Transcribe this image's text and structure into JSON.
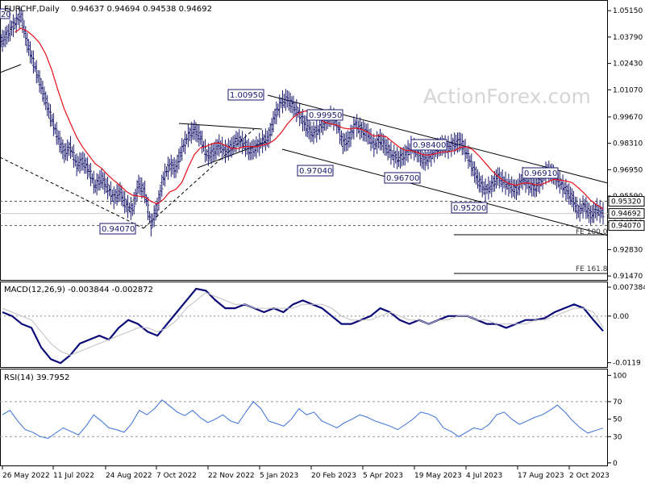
{
  "header": {
    "symbol": "EURCHF,Daily",
    "ohlc": "0.94637 0.94694 0.94538 0.94692"
  },
  "watermark": "ActionForex.com",
  "colors": {
    "price": "#1a1a6e",
    "ma": "#e8101a",
    "macd": "#0a0a78",
    "signal": "#c0c0c0",
    "rsi": "#3a6fd8",
    "line": "#000000",
    "level": "#555555",
    "label_border": "#1a1a6e",
    "watermark": "#d5d5d5"
  },
  "chart_data": [
    {
      "type": "candlestick",
      "panel": "price",
      "title": "EURCHF,Daily",
      "ylim": [
        0.9135,
        1.0545
      ],
      "y_ticks": [
        "1.05150",
        "1.03790",
        "1.02430",
        "1.01070",
        "0.99670",
        "0.98310",
        "0.96950",
        "0.95590",
        "0.94230",
        "0.92830",
        "0.91470"
      ],
      "current_price": "0.94692",
      "level_labels": [
        "0.95320",
        "0.94070"
      ],
      "x_tick_labels": [
        "26 May 2022",
        "11 Jul 2022",
        "24 Aug 2022",
        "7 Oct 2022",
        "22 Nov 2022",
        "5 Jan 2023",
        "20 Feb 2023",
        "5 Apr 2023",
        "19 May 2023",
        "4 Jul 2023",
        "17 Aug 2023",
        "2 Oct 2023"
      ],
      "closes": [
        1.036,
        1.04,
        1.045,
        1.049,
        1.035,
        1.025,
        1.015,
        1.005,
        0.995,
        0.986,
        0.978,
        0.981,
        0.972,
        0.974,
        0.969,
        0.961,
        0.965,
        0.96,
        0.955,
        0.958,
        0.951,
        0.949,
        0.962,
        0.958,
        0.941,
        0.95,
        0.965,
        0.972,
        0.97,
        0.98,
        0.987,
        0.99,
        0.986,
        0.977,
        0.978,
        0.982,
        0.979,
        0.981,
        0.985,
        0.983,
        0.979,
        0.981,
        0.984,
        0.986,
        0.997,
        1.004,
        1.006,
        1.002,
        0.998,
        0.992,
        0.988,
        0.99,
        0.994,
        0.997,
        0.994,
        0.983,
        0.985,
        0.993,
        0.99,
        0.988,
        0.982,
        0.985,
        0.981,
        0.977,
        0.975,
        0.977,
        0.981,
        0.979,
        0.974,
        0.976,
        0.98,
        0.982,
        0.981,
        0.983,
        0.984,
        0.978,
        0.97,
        0.963,
        0.959,
        0.961,
        0.966,
        0.963,
        0.961,
        0.959,
        0.965,
        0.962,
        0.96,
        0.964,
        0.969,
        0.967,
        0.963,
        0.959,
        0.955,
        0.948,
        0.951,
        0.946,
        0.949,
        0.94692
      ],
      "ma_period": 20,
      "extras": {
        "level_lines": [
          0.9532,
          0.9407
        ],
        "annotations": [
          {
            "label": "1.00950",
            "x": "5 Jan 2023",
            "y": 1.0095
          },
          {
            "label": "0.99950",
            "x": "20 Feb 2023",
            "y": 0.9995
          },
          {
            "label": "0.98400",
            "x": "19 May 2023",
            "y": 0.984
          },
          {
            "label": "0.97040",
            "x": "20 Feb 2023",
            "y": 0.9704
          },
          {
            "label": "0.96700",
            "x": "5 Apr 2023",
            "y": 0.967
          },
          {
            "label": "0.96910",
            "x": "17 Aug 2023",
            "y": 0.9691
          },
          {
            "label": "0.95200",
            "x": "4 Jul 2023",
            "y": 0.952
          },
          {
            "label": "0.94070",
            "x": "24 Aug 2022",
            "y": 0.9407
          }
        ],
        "fib_labels": [
          "FE 100.0",
          "FE 161.8"
        ],
        "corner_label": "20"
      }
    },
    {
      "type": "line",
      "panel": "macd",
      "title": "MACD(12,26,9) -0.003844 -0.002872",
      "ylim": [
        -0.0128,
        0.008
      ],
      "y_ticks": [
        "0.007384",
        "0.00",
        "-0.0119"
      ],
      "series": [
        {
          "name": "MACD",
          "values": [
            0.001,
            0.0,
            -0.002,
            -0.003,
            -0.008,
            -0.011,
            -0.012,
            -0.01,
            -0.007,
            -0.006,
            -0.005,
            -0.006,
            -0.003,
            -0.001,
            -0.002,
            -0.004,
            -0.005,
            -0.002,
            0.001,
            0.004,
            0.007,
            0.0065,
            0.004,
            0.002,
            0.002,
            0.003,
            0.002,
            0.001,
            0.002,
            0.001,
            0.003,
            0.004,
            0.003,
            0.002,
            0.0,
            -0.002,
            -0.002,
            -0.001,
            0.0,
            0.002,
            0.001,
            -0.001,
            -0.002,
            -0.001,
            -0.002,
            -0.001,
            0.0,
            0.0,
            0.0,
            -0.001,
            -0.002,
            -0.002,
            -0.003,
            -0.002,
            -0.001,
            -0.001,
            -0.0005,
            0.001,
            0.002,
            0.003,
            0.002,
            -0.001,
            -0.0038
          ]
        },
        {
          "name": "Signal",
          "values": [
            0.002,
            0.001,
            0.0,
            -0.001,
            -0.004,
            -0.007,
            -0.009,
            -0.01,
            -0.009,
            -0.008,
            -0.007,
            -0.006,
            -0.005,
            -0.004,
            -0.003,
            -0.003,
            -0.004,
            -0.003,
            -0.001,
            0.002,
            0.004,
            0.006,
            0.005,
            0.004,
            0.003,
            0.003,
            0.002,
            0.002,
            0.002,
            0.002,
            0.002,
            0.003,
            0.003,
            0.003,
            0.002,
            0.0,
            -0.001,
            -0.001,
            -0.001,
            0.0,
            0.001,
            0.0,
            -0.001,
            -0.001,
            -0.002,
            -0.001,
            -0.001,
            0.0,
            0.0,
            -0.001,
            -0.001,
            -0.002,
            -0.002,
            -0.002,
            -0.002,
            -0.001,
            -0.001,
            0.0,
            0.001,
            0.002,
            0.002,
            0.001,
            -0.0029
          ]
        }
      ]
    },
    {
      "type": "line",
      "panel": "rsi",
      "title": "RSI(14) 39.7952",
      "ylim": [
        -2,
        104
      ],
      "y_ticks": [
        "100",
        "70",
        "50",
        "30",
        "0"
      ],
      "series": [
        {
          "name": "RSI",
          "values": [
            55,
            60,
            48,
            38,
            35,
            30,
            28,
            34,
            40,
            36,
            32,
            42,
            55,
            48,
            40,
            38,
            35,
            45,
            60,
            55,
            62,
            72,
            65,
            58,
            54,
            60,
            52,
            46,
            50,
            55,
            48,
            45,
            58,
            70,
            62,
            48,
            45,
            42,
            50,
            62,
            55,
            58,
            48,
            44,
            40,
            46,
            50,
            55,
            52,
            48,
            45,
            42,
            38,
            44,
            50,
            58,
            56,
            52,
            40,
            36,
            30,
            35,
            40,
            38,
            44,
            55,
            58,
            50,
            44,
            48,
            52,
            55,
            60,
            66,
            58,
            48,
            40,
            34,
            37,
            39.8
          ]
        }
      ]
    }
  ]
}
